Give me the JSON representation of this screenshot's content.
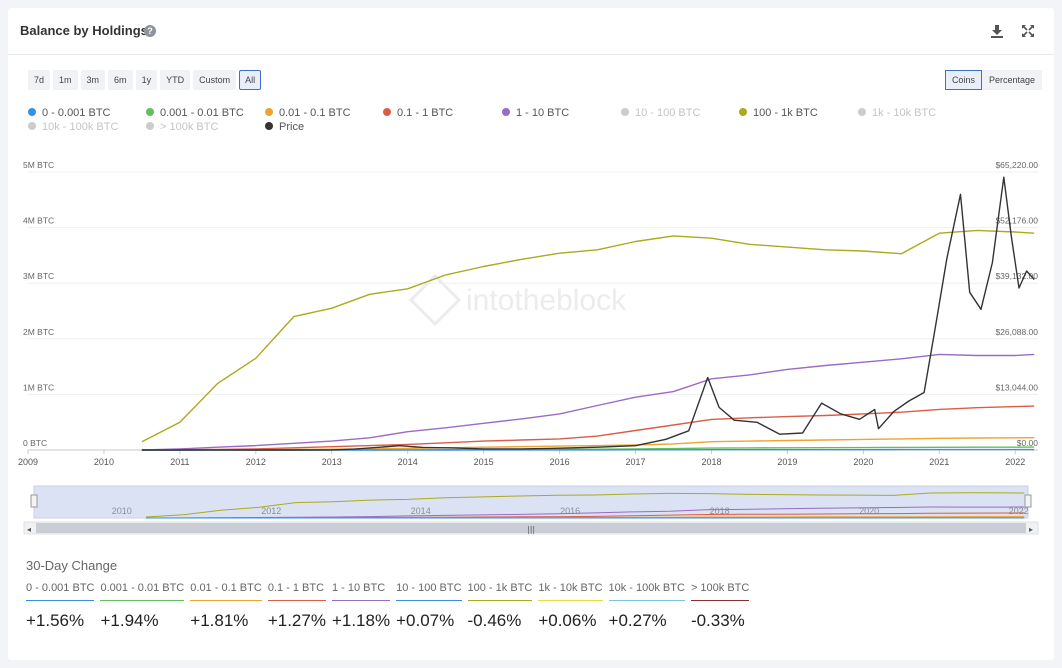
{
  "header": {
    "title": "Balance by Holdings",
    "help_icon": "question-circle-icon",
    "download_icon": "download-icon",
    "expand_icon": "expand-icon"
  },
  "ranges": [
    "7d",
    "1m",
    "3m",
    "6m",
    "1y",
    "YTD",
    "Custom",
    "All"
  ],
  "active_range": "All",
  "modes": [
    "Coins",
    "Percentage"
  ],
  "active_mode": "Coins",
  "watermark": "intotheblock",
  "legend": [
    {
      "label": "0 - 0.001 BTC",
      "color": "#3b8fe0",
      "visible": true
    },
    {
      "label": "0.001 - 0.01 BTC",
      "color": "#62bf5c",
      "visible": true
    },
    {
      "label": "0.01 - 0.1 BTC",
      "color": "#eea42f",
      "visible": true
    },
    {
      "label": "0.1 - 1 BTC",
      "color": "#db5d47",
      "visible": true
    },
    {
      "label": "1 - 10 BTC",
      "color": "#9b6bc3",
      "visible": true
    },
    {
      "label": "10 - 100 BTC",
      "color": "#cccccc",
      "visible": false
    },
    {
      "label": "100 - 1k BTC",
      "color": "#a9ab1e",
      "visible": true
    },
    {
      "label": "1k - 10k BTC",
      "color": "#cccccc",
      "visible": false
    },
    {
      "label": "10k - 100k BTC",
      "color": "#cccccc",
      "visible": false
    },
    {
      "label": "> 100k BTC",
      "color": "#cccccc",
      "visible": false
    },
    {
      "label": "Price",
      "color": "#333333",
      "visible": true
    }
  ],
  "chart_data": {
    "type": "line",
    "title": "Balance by Holdings",
    "x": [
      2010.5,
      2011.0,
      2011.5,
      2012.0,
      2012.5,
      2013.0,
      2013.5,
      2014.0,
      2014.5,
      2015.0,
      2015.5,
      2016.0,
      2016.5,
      2017.0,
      2017.5,
      2018.0,
      2018.5,
      2019.0,
      2019.5,
      2020.0,
      2020.5,
      2021.0,
      2021.5,
      2022.0,
      2022.25
    ],
    "xlim": [
      2009,
      2022.3
    ],
    "x_ticks": [
      "2009",
      "2010",
      "2011",
      "2012",
      "2013",
      "2014",
      "2015",
      "2016",
      "2017",
      "2018",
      "2019",
      "2020",
      "2021",
      "2022"
    ],
    "y_left": {
      "label": "BTC",
      "lim": [
        0,
        5000000
      ],
      "ticks": [
        "0 BTC",
        "1M BTC",
        "2M BTC",
        "3M BTC",
        "4M BTC",
        "5M BTC"
      ]
    },
    "y_right": {
      "label": "Price",
      "lim": [
        0,
        65220
      ],
      "ticks": [
        "$0.00",
        "$13,044.00",
        "$26,088.00",
        "$39,132.00",
        "$52,176.00",
        "$65,220.00"
      ]
    },
    "series": [
      {
        "name": "100 - 1k BTC",
        "axis": "left",
        "values": [
          150000,
          500000,
          1200000,
          1650000,
          2400000,
          2550000,
          2800000,
          2900000,
          3150000,
          3300000,
          3430000,
          3540000,
          3600000,
          3750000,
          3850000,
          3810000,
          3700000,
          3650000,
          3600000,
          3580000,
          3530000,
          3900000,
          3950000,
          3920000,
          3900000
        ]
      },
      {
        "name": "1 - 10 BTC",
        "axis": "left",
        "values": [
          0,
          20000,
          50000,
          80000,
          120000,
          160000,
          220000,
          330000,
          400000,
          480000,
          560000,
          650000,
          800000,
          950000,
          1050000,
          1280000,
          1350000,
          1450000,
          1520000,
          1580000,
          1640000,
          1720000,
          1700000,
          1700000,
          1720000
        ]
      },
      {
        "name": "0.1 - 1 BTC",
        "axis": "left",
        "values": [
          0,
          5000,
          10000,
          20000,
          40000,
          60000,
          80000,
          100000,
          130000,
          160000,
          180000,
          200000,
          250000,
          350000,
          450000,
          550000,
          580000,
          600000,
          620000,
          650000,
          680000,
          730000,
          760000,
          780000,
          790000
        ]
      },
      {
        "name": "0.01 - 0.1 BTC",
        "axis": "left",
        "values": [
          0,
          0,
          2000,
          5000,
          10000,
          15000,
          20000,
          30000,
          40000,
          50000,
          60000,
          70000,
          80000,
          90000,
          110000,
          150000,
          160000,
          170000,
          180000,
          190000,
          200000,
          210000,
          215000,
          220000,
          222000
        ]
      },
      {
        "name": "0.001 - 0.01 BTC",
        "axis": "left",
        "values": [
          0,
          0,
          0,
          0,
          0,
          1000,
          2000,
          3000,
          5000,
          8000,
          10000,
          12000,
          15000,
          20000,
          25000,
          35000,
          38000,
          40000,
          42000,
          44000,
          46000,
          48000,
          50000,
          51000,
          52000
        ]
      },
      {
        "name": "0 - 0.001 BTC",
        "axis": "left",
        "values": [
          0,
          0,
          0,
          0,
          0,
          0,
          0,
          0,
          0,
          1000,
          1000,
          2000,
          2000,
          3000,
          4000,
          5000,
          5000,
          6000,
          6000,
          6000,
          7000,
          8000,
          8000,
          8000,
          8000
        ]
      },
      {
        "name": "Price",
        "axis": "right",
        "points": [
          [
            2010.5,
            0
          ],
          [
            2011.0,
            10
          ],
          [
            2011.5,
            14
          ],
          [
            2012.0,
            5
          ],
          [
            2012.5,
            7
          ],
          [
            2013.0,
            13
          ],
          [
            2013.3,
            200
          ],
          [
            2013.9,
            1000
          ],
          [
            2014.2,
            600
          ],
          [
            2014.6,
            500
          ],
          [
            2015.0,
            250
          ],
          [
            2015.5,
            260
          ],
          [
            2016.0,
            430
          ],
          [
            2016.5,
            650
          ],
          [
            2017.0,
            1000
          ],
          [
            2017.4,
            2500
          ],
          [
            2017.7,
            4500
          ],
          [
            2017.95,
            17000
          ],
          [
            2018.1,
            10000
          ],
          [
            2018.3,
            7000
          ],
          [
            2018.6,
            6500
          ],
          [
            2018.9,
            3700
          ],
          [
            2019.2,
            4000
          ],
          [
            2019.45,
            11000
          ],
          [
            2019.7,
            8500
          ],
          [
            2019.95,
            7200
          ],
          [
            2020.15,
            9500
          ],
          [
            2020.2,
            5000
          ],
          [
            2020.4,
            9000
          ],
          [
            2020.6,
            11500
          ],
          [
            2020.8,
            13500
          ],
          [
            2020.95,
            29000
          ],
          [
            2021.1,
            45000
          ],
          [
            2021.28,
            60000
          ],
          [
            2021.4,
            37000
          ],
          [
            2021.55,
            33000
          ],
          [
            2021.7,
            44000
          ],
          [
            2021.85,
            64000
          ],
          [
            2021.95,
            50000
          ],
          [
            2022.05,
            38000
          ],
          [
            2022.15,
            42000
          ],
          [
            2022.25,
            40000
          ]
        ]
      }
    ]
  },
  "navigator": {
    "labels": [
      "2010",
      "2012",
      "2014",
      "2016",
      "2018",
      "2020",
      "2022"
    ]
  },
  "changes": {
    "title": "30-Day Change",
    "items": [
      {
        "label": "0 - 0.001 BTC",
        "value": "+1.56%",
        "color": "#3b8fe0"
      },
      {
        "label": "0.001 - 0.01 BTC",
        "value": "+1.94%",
        "color": "#62bf5c"
      },
      {
        "label": "0.01 - 0.1 BTC",
        "value": "+1.81%",
        "color": "#eea42f"
      },
      {
        "label": "0.1 - 1 BTC",
        "value": "+1.27%",
        "color": "#db5d47"
      },
      {
        "label": "1 - 10 BTC",
        "value": "+1.18%",
        "color": "#9b6bc3"
      },
      {
        "label": "10 - 100 BTC",
        "value": "+0.07%",
        "color": "#3b8fe0"
      },
      {
        "label": "100 - 1k BTC",
        "value": "-0.46%",
        "color": "#a9ab1e"
      },
      {
        "label": "1k - 10k BTC",
        "value": "+0.06%",
        "color": "#e6dc3a"
      },
      {
        "label": "10k - 100k BTC",
        "value": "+0.27%",
        "color": "#78c7d8"
      },
      {
        "label": "> 100k BTC",
        "value": "-0.33%",
        "color": "#8b2f2f"
      }
    ]
  }
}
